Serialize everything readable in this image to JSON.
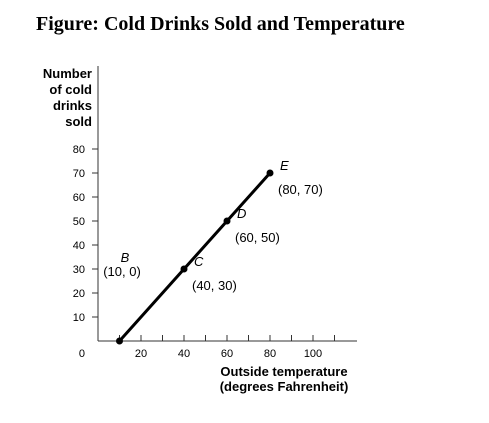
{
  "figure_title": "Figure: Cold Drinks Sold and Temperature",
  "chart_data": {
    "type": "line",
    "title": "Figure: Cold Drinks Sold and Temperature",
    "ylabel_lines": [
      "Number",
      "of cold",
      "drinks",
      "sold"
    ],
    "xlabel_lines": [
      "Outside temperature",
      "(degrees Fahrenheit)"
    ],
    "xlim": [
      0,
      110
    ],
    "ylim": [
      0,
      80
    ],
    "x_ticks": [
      0,
      10,
      20,
      30,
      40,
      50,
      60,
      70,
      80,
      90,
      100,
      110
    ],
    "x_tick_labels": [
      {
        "value": 0,
        "label": "0"
      },
      {
        "value": 20,
        "label": "20"
      },
      {
        "value": 40,
        "label": "40"
      },
      {
        "value": 60,
        "label": "60"
      },
      {
        "value": 80,
        "label": "80"
      },
      {
        "value": 100,
        "label": "100"
      }
    ],
    "y_ticks": [
      10,
      20,
      30,
      40,
      50,
      60,
      70,
      80
    ],
    "y_tick_labels": [
      {
        "value": 10,
        "label": "10"
      },
      {
        "value": 20,
        "label": "20"
      },
      {
        "value": 30,
        "label": "30"
      },
      {
        "value": 40,
        "label": "40"
      },
      {
        "value": 50,
        "label": "50"
      },
      {
        "value": 60,
        "label": "60"
      },
      {
        "value": 70,
        "label": "70"
      },
      {
        "value": 80,
        "label": "80"
      }
    ],
    "grid": false,
    "points": [
      {
        "name": "B",
        "coords": "(10, 0)",
        "x": 10,
        "y": 0
      },
      {
        "name": "C",
        "coords": "(40, 30)",
        "x": 40,
        "y": 30
      },
      {
        "name": "D",
        "coords": "(60, 50)",
        "x": 60,
        "y": 50
      },
      {
        "name": "E",
        "coords": "(80, 70)",
        "x": 80,
        "y": 70
      }
    ]
  }
}
